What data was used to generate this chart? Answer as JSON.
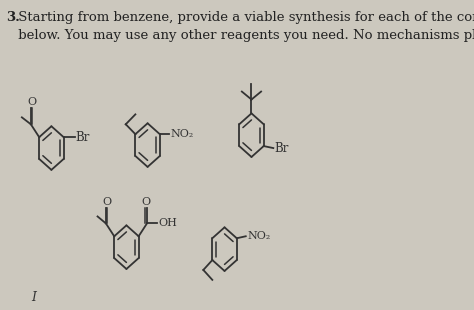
{
  "bg_color": "#ccc8be",
  "text_color": "#222222",
  "sc": "#333333",
  "title_fontsize": 9.5,
  "title_text": " Starting from benzene, provide a viable synthesis for each of the compounds\n below. You may use any other reagents you need. No mechanisms please.",
  "num_text": "3.",
  "label_Br1": "Br",
  "label_NO2_1": "NO₂",
  "label_Br2": "Br",
  "label_OH": "OH",
  "label_NO2_2": "NO₂",
  "label_I": "I"
}
